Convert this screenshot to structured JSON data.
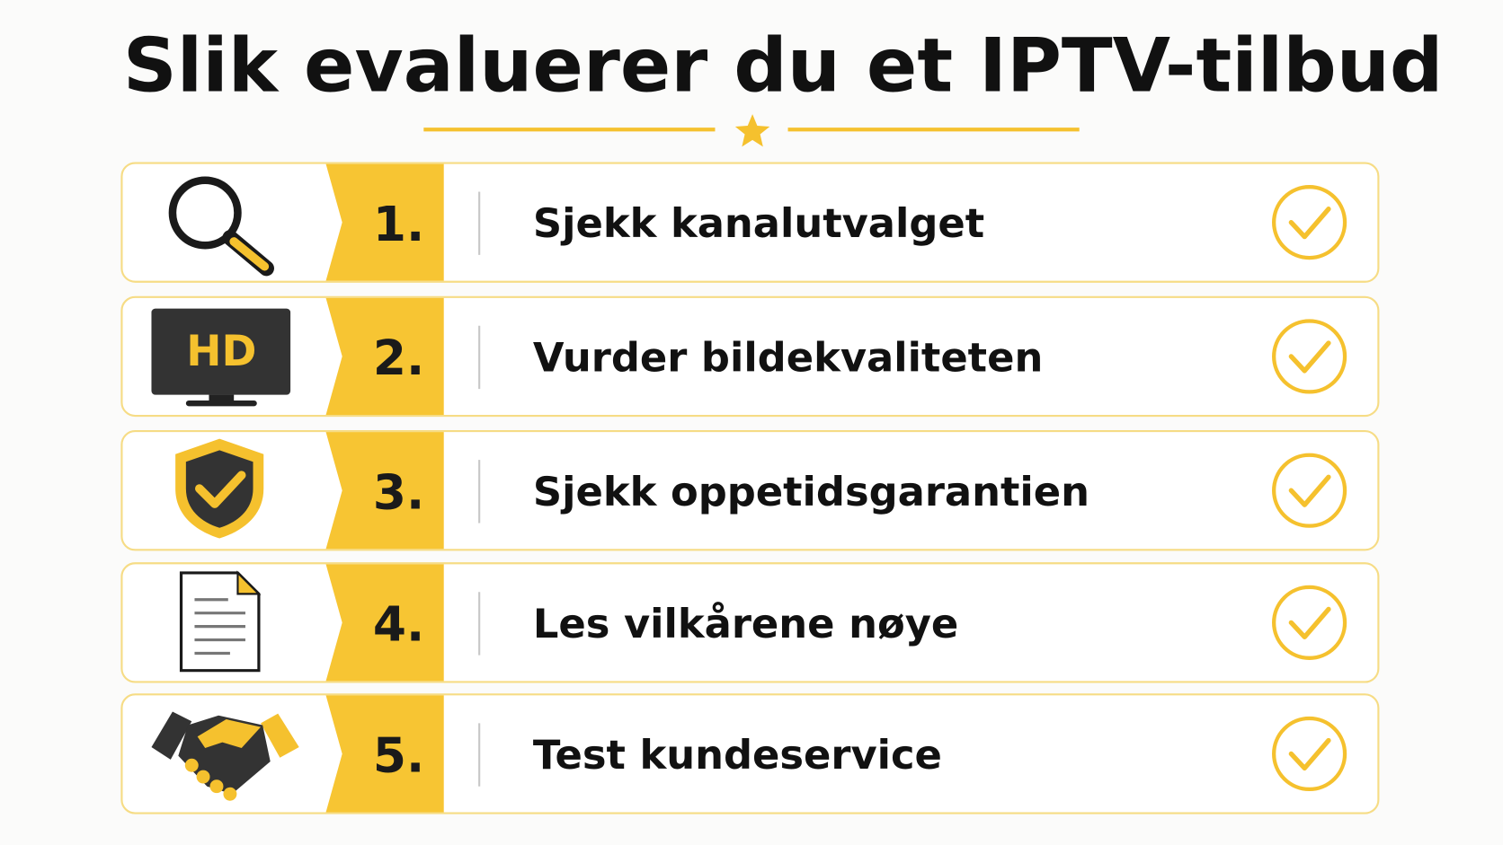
{
  "title": "Slik evaluerer du et IPTV-tilbud",
  "items": [
    {
      "number": "1.",
      "label": "Sjekk kanalutvalget"
    },
    {
      "number": "2.",
      "label": "Vurder bildekvaliteten",
      "icon_text": "HD"
    },
    {
      "number": "3.",
      "label": "Sjekk oppetidsgarantien"
    },
    {
      "number": "4.",
      "label": "Les vilkårene nøye"
    },
    {
      "number": "5.",
      "label": "Test kundeservice"
    }
  ]
}
